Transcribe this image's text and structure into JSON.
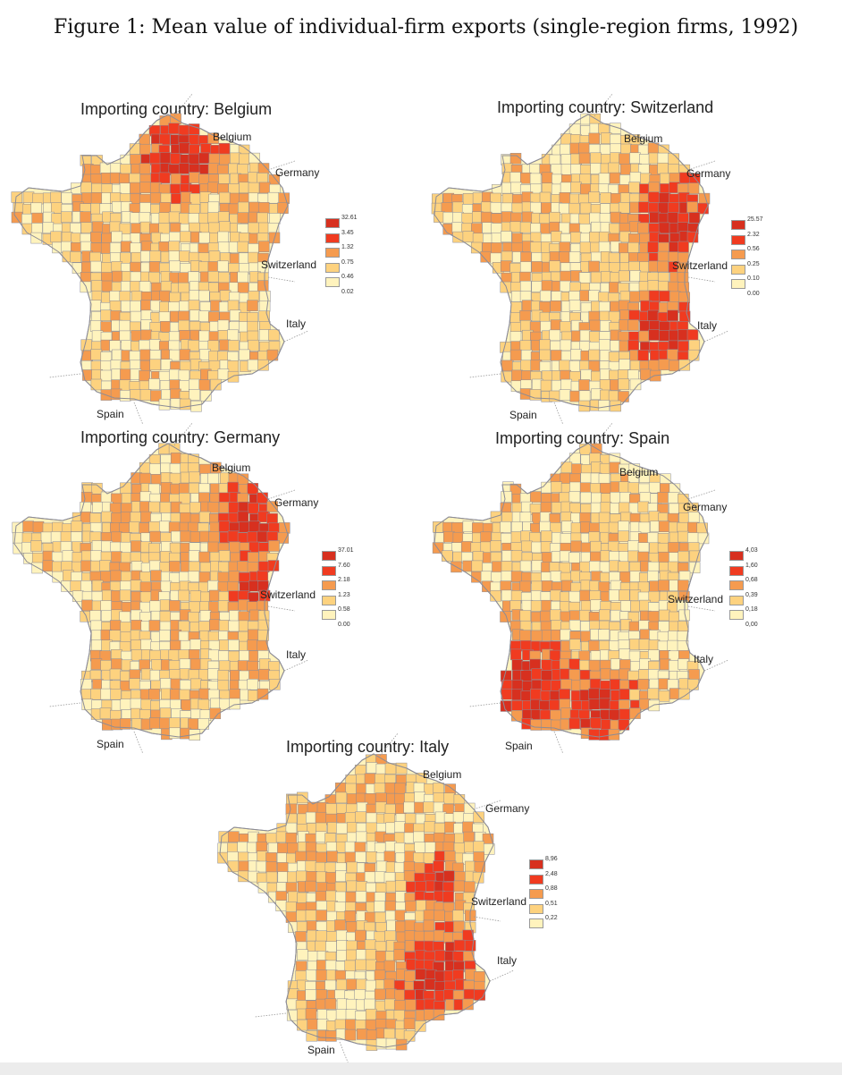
{
  "figure": {
    "caption": "Figure 1: Mean value of individual-firm exports (single-region firms, 1992)"
  },
  "colors": {
    "class_5": "#d7301f",
    "class_4": "#f03b20",
    "class_3": "#f59b4f",
    "class_2": "#fdd27f",
    "class_1": "#fff3bd",
    "region_border": "#8c8c96"
  },
  "panels": [
    {
      "title": "Importing country: Belgium",
      "labels": {
        "belgium": "Belgium",
        "germany": "Germany",
        "switzerland": "Switzerland",
        "italy": "Italy",
        "spain": "Spain"
      },
      "legend": [
        "32.61",
        "3.45",
        "1.32",
        "0.75",
        "0.46",
        "0.02"
      ],
      "hotspot": "north"
    },
    {
      "title": "Importing country: Switzerland",
      "labels": {
        "belgium": "Belgium",
        "germany": "Germany",
        "switzerland": "Switzerland",
        "italy": "Italy",
        "spain": "Spain"
      },
      "legend": [
        "25.57",
        "2.32",
        "0.56",
        "0.25",
        "0.10",
        "0.00"
      ],
      "hotspot": "east"
    },
    {
      "title": "Importing country: Germany",
      "labels": {
        "belgium": "Belgium",
        "germany": "Germany",
        "switzerland": "Switzerland",
        "italy": "Italy",
        "spain": "Spain"
      },
      "legend": [
        "37.01",
        "7.60",
        "2.18",
        "1.23",
        "0.58",
        "0.00"
      ],
      "hotspot": "northeast"
    },
    {
      "title": "Importing country: Spain",
      "labels": {
        "belgium": "Belgium",
        "germany": "Germany",
        "switzerland": "Switzerland",
        "italy": "Italy",
        "spain": "Spain"
      },
      "legend": [
        "4,03",
        "1,60",
        "0,68",
        "0,39",
        "0,18",
        "0,00"
      ],
      "hotspot": "southwest"
    },
    {
      "title": "Importing country: Italy",
      "labels": {
        "belgium": "Belgium",
        "germany": "Germany",
        "switzerland": "Switzerland",
        "italy": "Italy",
        "spain": "Spain"
      },
      "legend": [
        "8,96",
        "2,48",
        "0,88",
        "0,51",
        "0,22"
      ],
      "hotspot": "southeast"
    }
  ]
}
